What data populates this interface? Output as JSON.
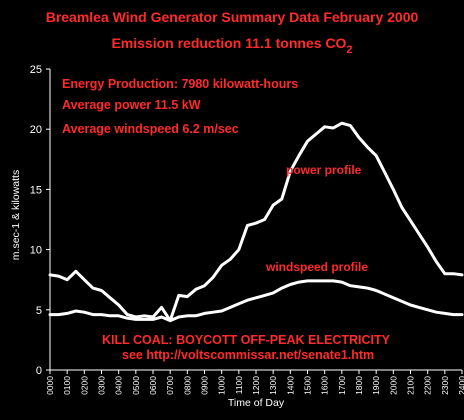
{
  "chart_data": {
    "type": "line",
    "title": "Breamlea Wind Generator Summary Data  February 2000",
    "subtitle_prefix": "Emission reduction 11.1 tonnes CO",
    "subtitle_subscript": "2",
    "xlabel": "Time of Day",
    "ylabel": "m.sec-1 & kilowatts",
    "ylim": [
      0,
      25
    ],
    "yticks": [
      "0",
      "5",
      "10",
      "15",
      "20",
      "25"
    ],
    "grid": false,
    "categories": [
      "0000",
      "0100",
      "0200",
      "0300",
      "0400",
      "0500",
      "0600",
      "0700",
      "0800",
      "0900",
      "1000",
      "1100",
      "1200",
      "1300",
      "1400",
      "1500",
      "1600",
      "1700",
      "1800",
      "1900",
      "2000",
      "2100",
      "2200",
      "2300",
      "2400"
    ],
    "annotations": {
      "energy": "Energy Production: 7980 kilowatt-hours",
      "avg_power": "Average power  11.5 kW",
      "avg_wind": "Average windspeed 6.2 m/sec",
      "kill_coal": "KILL COAL: BOYCOTT OFF-PEAK ELECTRICITY",
      "see_url": "see http://voltscommissar.net/senate1.htm"
    },
    "series": [
      {
        "name": "power profile",
        "x": [
          0,
          0.5,
          1,
          1.5,
          2,
          2.5,
          3,
          3.5,
          4,
          4.5,
          5,
          5.5,
          6,
          6.5,
          7,
          7.5,
          8,
          8.5,
          9,
          9.5,
          10,
          10.5,
          11,
          11.5,
          12,
          12.5,
          13,
          13.5,
          14,
          14.5,
          15,
          15.5,
          16,
          16.5,
          17,
          17.5,
          18,
          18.5,
          19,
          19.5,
          20,
          20.5,
          21,
          21.5,
          22,
          22.5,
          23,
          23.5,
          24
        ],
        "values": [
          7.9,
          7.8,
          7.5,
          8.2,
          7.5,
          6.8,
          6.6,
          6.0,
          5.4,
          4.6,
          4.4,
          4.5,
          4.4,
          5.2,
          4.1,
          6.2,
          6.1,
          6.7,
          7.0,
          7.7,
          8.7,
          9.2,
          10.0,
          12.0,
          12.2,
          12.5,
          13.7,
          14.2,
          16.5,
          17.8,
          19.0,
          19.6,
          20.2,
          20.1,
          20.5,
          20.3,
          19.3,
          18.5,
          17.8,
          16.4,
          15.0,
          13.5,
          12.4,
          11.3,
          10.2,
          9.0,
          8.0,
          8.0,
          7.9
        ],
        "color": "#ffffff"
      },
      {
        "name": "windspeed profile",
        "x": [
          0,
          0.5,
          1,
          1.5,
          2,
          2.5,
          3,
          3.5,
          4,
          4.5,
          5,
          5.5,
          6,
          6.5,
          7,
          7.5,
          8,
          8.5,
          9,
          9.5,
          10,
          10.5,
          11,
          11.5,
          12,
          12.5,
          13,
          13.5,
          14,
          14.5,
          15,
          15.5,
          16,
          16.5,
          17,
          17.5,
          18,
          18.5,
          19,
          19.5,
          20,
          20.5,
          21,
          21.5,
          22,
          22.5,
          23,
          23.5,
          24
        ],
        "values": [
          4.6,
          4.6,
          4.7,
          4.9,
          4.8,
          4.6,
          4.6,
          4.5,
          4.5,
          4.3,
          4.2,
          4.2,
          4.2,
          4.4,
          4.1,
          4.4,
          4.5,
          4.5,
          4.7,
          4.8,
          4.9,
          5.2,
          5.5,
          5.8,
          6.0,
          6.2,
          6.4,
          6.8,
          7.1,
          7.3,
          7.4,
          7.4,
          7.4,
          7.4,
          7.3,
          7.0,
          6.9,
          6.8,
          6.6,
          6.3,
          6.0,
          5.7,
          5.4,
          5.2,
          5.0,
          4.8,
          4.7,
          4.6,
          4.6
        ],
        "color": "#ffffff"
      }
    ]
  }
}
